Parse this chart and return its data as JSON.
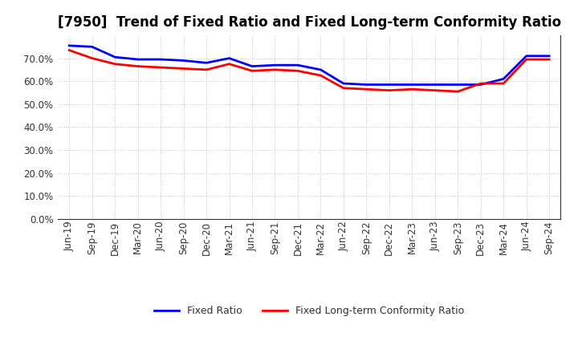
{
  "title": "[7950]  Trend of Fixed Ratio and Fixed Long-term Conformity Ratio",
  "x_labels": [
    "Jun-19",
    "Sep-19",
    "Dec-19",
    "Mar-20",
    "Jun-20",
    "Sep-20",
    "Dec-20",
    "Mar-21",
    "Jun-21",
    "Sep-21",
    "Dec-21",
    "Mar-22",
    "Jun-22",
    "Sep-22",
    "Dec-22",
    "Mar-23",
    "Jun-23",
    "Sep-23",
    "Dec-23",
    "Mar-24",
    "Jun-24",
    "Sep-24"
  ],
  "fixed_ratio": [
    75.5,
    75.0,
    70.5,
    69.5,
    69.5,
    69.0,
    68.0,
    70.0,
    66.5,
    67.0,
    67.0,
    65.0,
    59.0,
    58.5,
    58.5,
    58.5,
    58.5,
    58.5,
    58.5,
    61.0,
    71.0,
    71.0
  ],
  "fixed_lt_ratio": [
    73.5,
    70.0,
    67.5,
    66.5,
    66.0,
    65.5,
    65.0,
    67.5,
    64.5,
    65.0,
    64.5,
    62.5,
    57.0,
    56.5,
    56.0,
    56.5,
    56.0,
    55.5,
    59.0,
    59.0,
    69.5,
    69.5
  ],
  "fixed_ratio_color": "#0000ff",
  "fixed_lt_ratio_color": "#ff0000",
  "ylim": [
    0,
    80
  ],
  "yticks": [
    0,
    10,
    20,
    30,
    40,
    50,
    60,
    70
  ],
  "background_color": "#ffffff",
  "grid_color": "#999999",
  "legend_fixed_ratio": "Fixed Ratio",
  "legend_fixed_lt_ratio": "Fixed Long-term Conformity Ratio",
  "title_fontsize": 12,
  "tick_fontsize": 8.5,
  "legend_fontsize": 9
}
